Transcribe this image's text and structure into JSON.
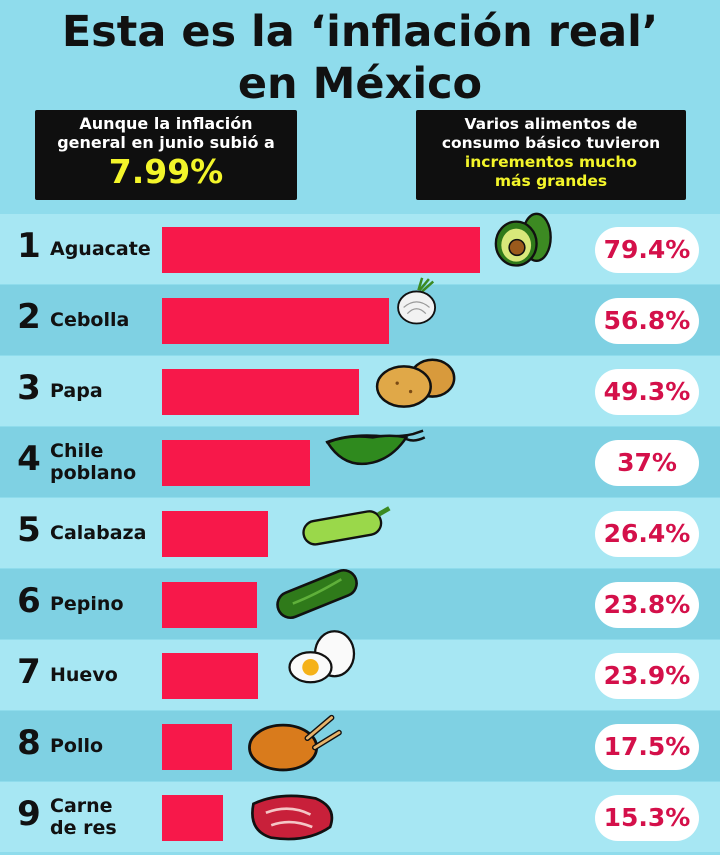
{
  "header": {
    "title_line1": "Esta es la ‘inflación real’",
    "title_line2": "en México",
    "left_box": {
      "line1": "Aunque la inflación",
      "line2": "general en junio subió a",
      "value": "7.99%"
    },
    "right_box": {
      "line1": "Varios alimentos de",
      "line2": "consumo básico tuvieron",
      "highlight1": "incrementos mucho",
      "highlight2": "más grandes"
    }
  },
  "colors": {
    "bar": "#f7184a",
    "percent_text": "#d4104a",
    "highlight": "#f3f52a"
  },
  "chart_data": {
    "type": "bar",
    "orientation": "horizontal",
    "categories": [
      "Aguacate",
      "Cebolla",
      "Papa",
      "Chile poblano",
      "Calabaza",
      "Pepino",
      "Huevo",
      "Pollo",
      "Carne de res"
    ],
    "values": [
      79.4,
      56.8,
      49.3,
      37,
      26.4,
      23.8,
      23.9,
      17.5,
      15.3
    ],
    "value_labels": [
      "79.4%",
      "56.8%",
      "49.3%",
      "37%",
      "26.4%",
      "23.8%",
      "23.9%",
      "17.5%",
      "15.3%"
    ],
    "ranks": [
      "1",
      "2",
      "3",
      "4",
      "5",
      "6",
      "7",
      "8",
      "9"
    ],
    "name_lines": [
      [
        "Aguacate"
      ],
      [
        "Cebolla"
      ],
      [
        "Papa"
      ],
      [
        "Chile",
        "poblano"
      ],
      [
        "Calabaza"
      ],
      [
        "Pepino"
      ],
      [
        "Huevo"
      ],
      [
        "Pollo"
      ],
      [
        "Carne",
        "de res"
      ]
    ],
    "icons": [
      "avocado-icon",
      "onion-icon",
      "potato-icon",
      "poblano-pepper-icon",
      "zucchini-icon",
      "cucumber-icon",
      "egg-icon",
      "chicken-icon",
      "beef-icon"
    ]
  }
}
